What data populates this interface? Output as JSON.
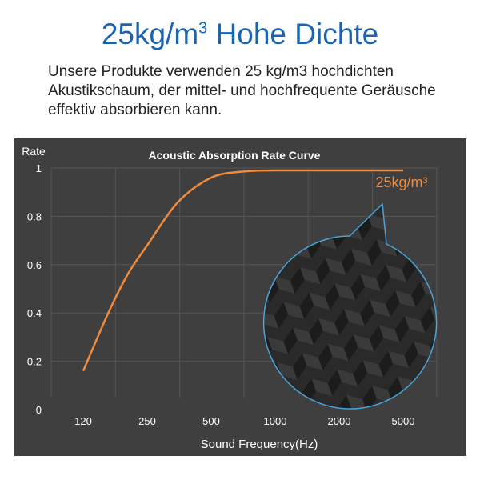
{
  "header": {
    "title": "25kg/m",
    "title_sup": "3",
    "title_rest": " Hohe Dichte"
  },
  "description": "Unsere Produkte verwenden 25 kg/m3 hochdichten Akustikschaum, der mittel- und hochfrequente Geräusche effektiv absorbieren kann.",
  "colors": {
    "title": "#1d64b0",
    "curve": "#f08a3c",
    "panel": "#3f3f3f",
    "circle_border": "#4aa3d8"
  },
  "chart_data": {
    "type": "line",
    "title": "Acoustic Absorption Rate Curve",
    "ylabel": "Rate",
    "xlabel": "Sound Frequency(Hz)",
    "categories": [
      "120",
      "250",
      "500",
      "1000",
      "2000",
      "5000"
    ],
    "yticks": [
      "0",
      "0.2",
      "0.4",
      "0.6",
      "0.8",
      "1"
    ],
    "ylim": [
      0,
      1
    ],
    "grid": true,
    "series": [
      {
        "name": "25kg/m³",
        "x": [
          120,
          160,
          200,
          250,
          350,
          500,
          700,
          1000,
          2000,
          5000
        ],
        "values": [
          0.16,
          0.4,
          0.56,
          0.68,
          0.86,
          0.96,
          0.985,
          0.99,
          0.99,
          0.99
        ]
      }
    ],
    "annotation": "25kg/m³ foam close-up"
  }
}
